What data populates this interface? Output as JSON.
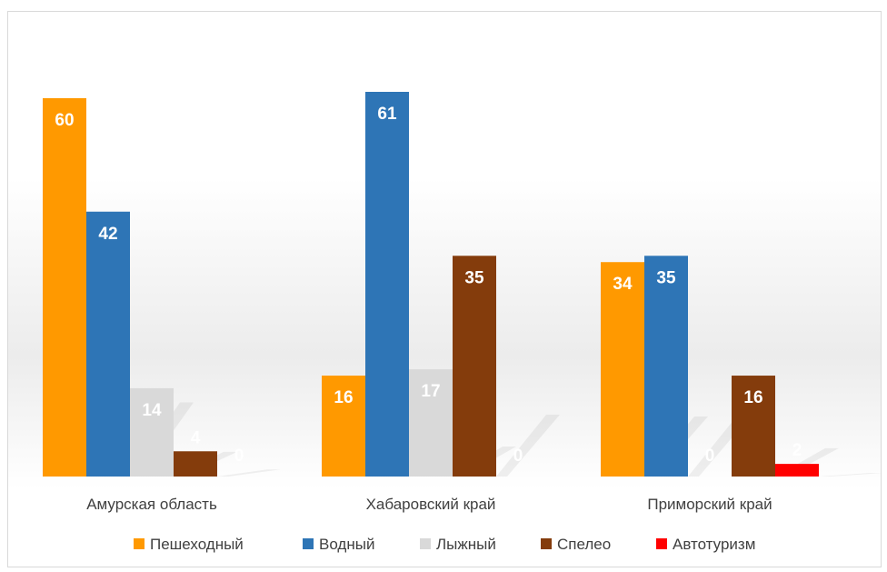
{
  "chart_data": {
    "type": "bar",
    "categories": [
      "Амурская область",
      "Хабаровский край",
      "Приморский край"
    ],
    "series": [
      {
        "name": "Пешеходный",
        "color": "#FF9900",
        "values": [
          60,
          16,
          34
        ]
      },
      {
        "name": "Водный",
        "color": "#2E75B6",
        "values": [
          42,
          61,
          35
        ]
      },
      {
        "name": "Лыжный",
        "color": "#D9D9D9",
        "values": [
          14,
          17,
          0
        ]
      },
      {
        "name": "Спелео",
        "color": "#843C0C",
        "values": [
          4,
          35,
          16
        ]
      },
      {
        "name": "Автотуризм",
        "color": "#FF0000",
        "values": [
          0,
          0,
          2
        ]
      }
    ],
    "ylim": [
      0,
      61
    ],
    "grid": false,
    "legend_position": "bottom",
    "data_labels": true
  }
}
